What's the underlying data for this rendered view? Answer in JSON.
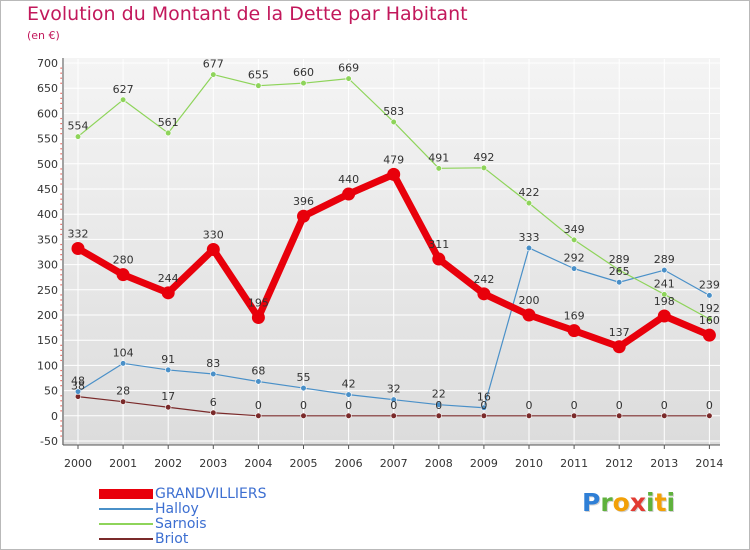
{
  "title": "Evolution du Montant de la Dette par Habitant",
  "subtitle": "(en €)",
  "logo": {
    "letters": [
      "P",
      "r",
      "o",
      "x",
      "i",
      "t",
      "i"
    ],
    "colors": [
      "#2f7fd6",
      "#5fb13c",
      "#f2a007",
      "#e23b32",
      "#5fb13c",
      "#f2a007",
      "#5fb13c"
    ]
  },
  "chart_data": {
    "type": "line",
    "title": "Evolution du Montant de la Dette par Habitant",
    "ylabel": "(en €)",
    "xlabel": "",
    "x": [
      "2000",
      "2001",
      "2002",
      "2003",
      "2004",
      "2005",
      "2006",
      "2007",
      "2008",
      "2009",
      "2010",
      "2011",
      "2012",
      "2013",
      "2014"
    ],
    "ylim": [
      -50,
      700
    ],
    "yticks": [
      -50,
      0,
      50,
      100,
      150,
      200,
      250,
      300,
      350,
      400,
      450,
      500,
      550,
      600,
      650,
      700
    ],
    "ytick_labels": [
      "-50",
      "0",
      "50",
      "100",
      "150",
      "200",
      "250",
      "300",
      "350",
      "400",
      "450",
      "500",
      "550",
      "600",
      "650",
      "700"
    ],
    "grid": true,
    "legend_position": "bottom-left",
    "series": [
      {
        "name": "GRANDVILLIERS",
        "color": "#e8000b",
        "label_color": "#3d6fd1",
        "values": [
          332,
          280,
          244,
          330,
          195,
          396,
          440,
          479,
          311,
          242,
          200,
          169,
          137,
          198,
          160
        ],
        "labels": [
          "332",
          "280",
          "244",
          "330",
          "195",
          "396",
          "440",
          "479",
          "311",
          "242",
          "200",
          "169",
          "137",
          "198",
          "160"
        ]
      },
      {
        "name": "Halloy",
        "color": "#4a90c8",
        "label_color": "#4a90c8",
        "values": [
          48,
          104,
          91,
          83,
          68,
          55,
          42,
          32,
          22,
          16,
          333,
          292,
          265,
          289,
          239
        ],
        "labels": [
          "48",
          "104",
          "91",
          "83",
          "68",
          "55",
          "42",
          "32",
          "22",
          "16",
          "333",
          "292",
          "265",
          "289",
          "239"
        ]
      },
      {
        "name": "Sarnois",
        "color": "#8ed45a",
        "label_color": "#7cc44a",
        "values": [
          554,
          627,
          561,
          677,
          655,
          660,
          669,
          583,
          491,
          492,
          422,
          349,
          289,
          241,
          192
        ],
        "labels": [
          "554",
          "627",
          "561",
          "677",
          "655",
          "660",
          "669",
          "583",
          "491",
          "492",
          "422",
          "349",
          "289",
          "241",
          "192"
        ]
      },
      {
        "name": "Briot",
        "color": "#7a2a2a",
        "label_color": "#7a2a2a",
        "values": [
          38,
          28,
          17,
          6,
          0,
          0,
          0,
          0,
          0,
          0,
          0,
          0,
          0,
          0,
          0
        ],
        "labels": [
          "38",
          "28",
          "17",
          "6",
          "0",
          "0",
          "0",
          "0",
          "0",
          "0",
          "0",
          "0",
          "0",
          "0",
          "0"
        ]
      }
    ]
  }
}
